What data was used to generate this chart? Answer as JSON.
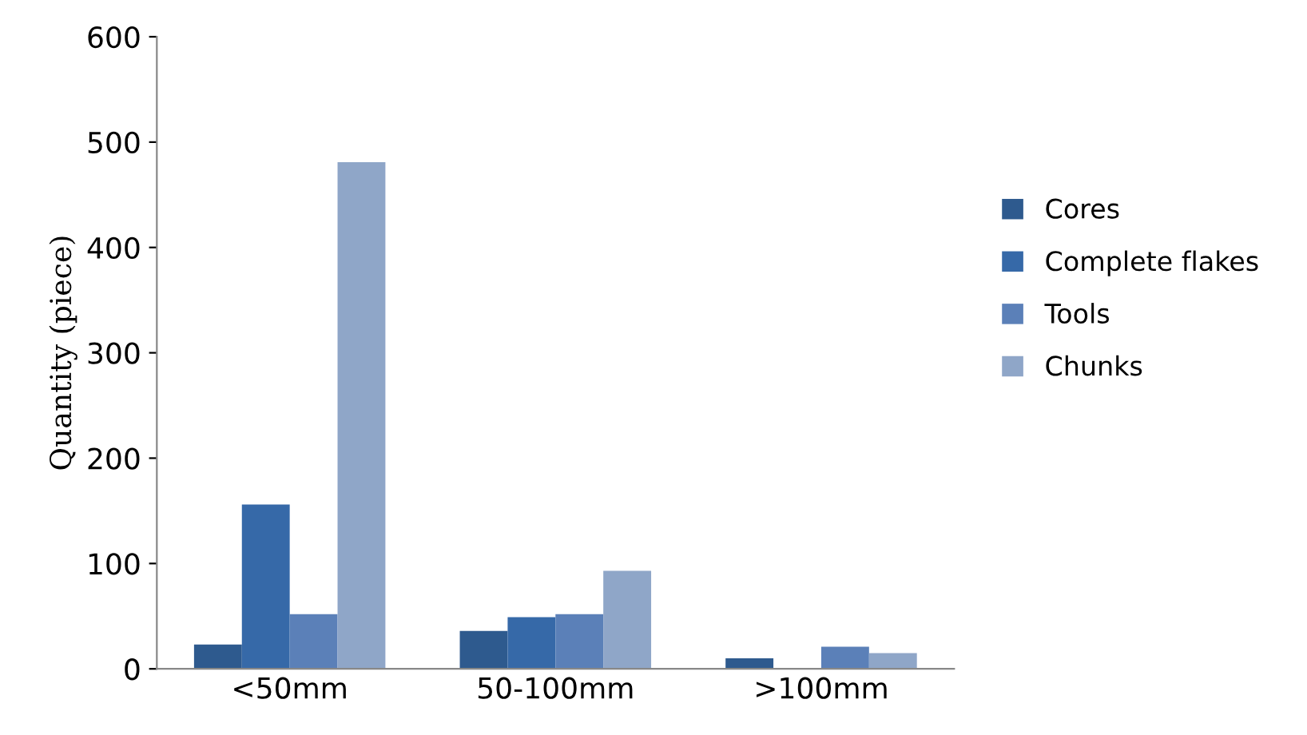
{
  "chart_data": {
    "type": "bar",
    "ylabel": "Quantity (piece)",
    "categories": [
      "<50mm",
      "50-100mm",
      ">100mm"
    ],
    "series": [
      {
        "name": "Cores",
        "color": "#2e5a8e",
        "values": [
          23,
          36,
          10
        ]
      },
      {
        "name": "Complete flakes",
        "color": "#3669a8",
        "values": [
          156,
          49,
          0
        ]
      },
      {
        "name": "Tools",
        "color": "#5b80b8",
        "values": [
          52,
          52,
          21
        ]
      },
      {
        "name": "Chunks",
        "color": "#8fa6c8",
        "values": [
          481,
          93,
          15
        ]
      }
    ],
    "ylim": [
      0,
      600
    ],
    "yticks": [
      0,
      100,
      200,
      300,
      400,
      500,
      600
    ],
    "grid": false,
    "legend": "right"
  }
}
